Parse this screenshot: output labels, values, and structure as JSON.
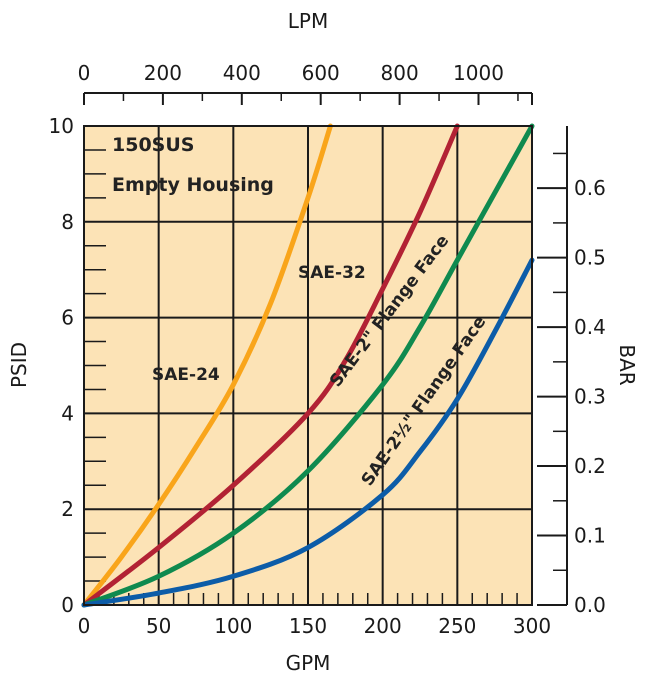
{
  "chart_data": {
    "type": "line",
    "colors": {
      "background": "#FCE3B6",
      "grid": "#1a1a1a",
      "series": [
        "#F9A51B",
        "#B22234",
        "#0F8A4F",
        "#0C5CA8"
      ]
    },
    "xlabel": "GPM",
    "ylabel": "PSID",
    "x2label": "LPM",
    "y2label": "BAR",
    "xlim": [
      0,
      300
    ],
    "ylim": [
      0,
      10
    ],
    "x2lim": [
      0,
      1135.6
    ],
    "y2lim": [
      0,
      0.6895
    ],
    "x_ticks": [
      "0",
      "50",
      "100",
      "150",
      "200",
      "250",
      "300"
    ],
    "y_ticks": [
      "0",
      "2",
      "4",
      "6",
      "8",
      "10"
    ],
    "x2_ticks": [
      "0",
      "200",
      "400",
      "600",
      "800",
      "1000"
    ],
    "y2_ticks": [
      "0.0",
      "0.1",
      "0.2",
      "0.3",
      "0.4",
      "0.5",
      "0.6"
    ],
    "grid": true,
    "annotations": [
      "150SUS",
      "Empty Housing"
    ],
    "series": [
      {
        "name": "SAE-24",
        "x": [
          0,
          25,
          50,
          75,
          100,
          125,
          150,
          165
        ],
        "y": [
          0,
          1.0,
          2.1,
          3.3,
          4.6,
          6.3,
          8.5,
          10.0
        ]
      },
      {
        "name": "SAE-32",
        "x": [
          0,
          50,
          100,
          150,
          175,
          200,
          225,
          250
        ],
        "y": [
          0,
          1.2,
          2.5,
          4.0,
          5.1,
          6.6,
          8.2,
          10.0
        ]
      },
      {
        "name": "SAE-2\" Flange Face",
        "x": [
          0,
          50,
          100,
          150,
          200,
          225,
          250,
          275,
          300
        ],
        "y": [
          0,
          0.6,
          1.5,
          2.8,
          4.6,
          5.8,
          7.2,
          8.6,
          10.0
        ]
      },
      {
        "name": "SAE-2½\" Flange Face",
        "x": [
          0,
          50,
          100,
          150,
          200,
          225,
          250,
          275,
          300
        ],
        "y": [
          0,
          0.25,
          0.6,
          1.2,
          2.3,
          3.2,
          4.3,
          5.7,
          7.2
        ]
      }
    ],
    "series_labels": [
      "SAE-24",
      "SAE-32",
      "SAE-2\" Flange Face",
      "SAE-2½\" Flange Face"
    ]
  }
}
